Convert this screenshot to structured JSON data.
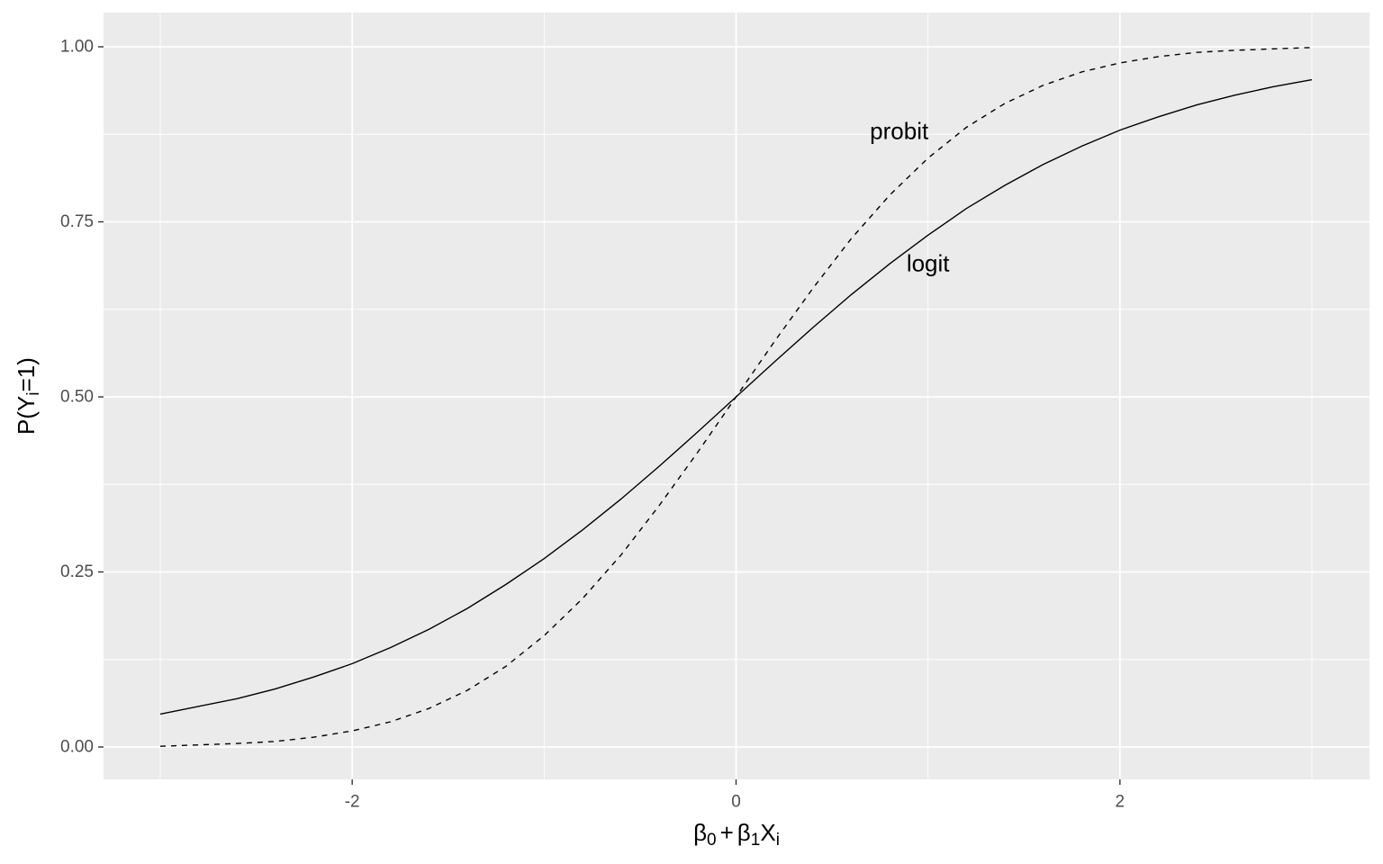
{
  "chart_data": {
    "type": "line",
    "xlim": [
      -3.0,
      3.0
    ],
    "ylim": [
      0.0,
      1.0
    ],
    "x_ticks": [
      -2,
      0,
      2
    ],
    "x_tick_labels": [
      "-2",
      "0",
      "2"
    ],
    "y_ticks": [
      0.0,
      0.25,
      0.5,
      0.75,
      1.0
    ],
    "y_tick_labels": [
      "0.00",
      "0.25",
      "0.50",
      "0.75",
      "1.00"
    ],
    "xlabel": {
      "beta": "β",
      "sub0": "0",
      "plus": "+",
      "sub1": "1",
      "X": "X",
      "subi": "i"
    },
    "ylabel": {
      "prefix": "P(Y",
      "sub": "i",
      "suffix": "=1)"
    },
    "grid": true,
    "background": "#ebebeb",
    "grid_color": "#ffffff",
    "series": [
      {
        "name": "logit",
        "style": "solid",
        "x": [
          -3.0,
          -2.6,
          -2.4,
          -2.2,
          -2.0,
          -1.8,
          -1.6,
          -1.4,
          -1.2,
          -1.0,
          -0.8,
          -0.6,
          -0.4,
          -0.2,
          0.0,
          0.2,
          0.4,
          0.6,
          0.8,
          1.0,
          1.2,
          1.4,
          1.6,
          1.8,
          2.0,
          2.2,
          2.4,
          2.6,
          2.8,
          3.0
        ],
        "values": [
          0.047,
          0.069,
          0.083,
          0.1,
          0.119,
          0.142,
          0.168,
          0.198,
          0.232,
          0.269,
          0.31,
          0.354,
          0.401,
          0.45,
          0.5,
          0.55,
          0.599,
          0.646,
          0.69,
          0.731,
          0.769,
          0.802,
          0.832,
          0.858,
          0.881,
          0.9,
          0.917,
          0.931,
          0.943,
          0.953
        ]
      },
      {
        "name": "probit",
        "style": "dashed",
        "x": [
          -3.0,
          -2.6,
          -2.4,
          -2.2,
          -2.0,
          -1.8,
          -1.6,
          -1.4,
          -1.2,
          -1.0,
          -0.8,
          -0.6,
          -0.4,
          -0.2,
          0.0,
          0.2,
          0.4,
          0.6,
          0.8,
          1.0,
          1.2,
          1.4,
          1.6,
          1.8,
          2.0,
          2.2,
          2.4,
          2.6,
          2.8,
          3.0
        ],
        "values": [
          0.001,
          0.005,
          0.008,
          0.014,
          0.023,
          0.036,
          0.055,
          0.081,
          0.115,
          0.159,
          0.212,
          0.274,
          0.345,
          0.421,
          0.5,
          0.579,
          0.655,
          0.726,
          0.788,
          0.841,
          0.885,
          0.919,
          0.945,
          0.964,
          0.977,
          0.986,
          0.992,
          0.995,
          0.997,
          0.999
        ]
      }
    ],
    "annotations": [
      {
        "text": "probit",
        "x": 0.85,
        "y": 0.877
      },
      {
        "text": "logit",
        "x": 1.0,
        "y": 0.688
      }
    ]
  }
}
